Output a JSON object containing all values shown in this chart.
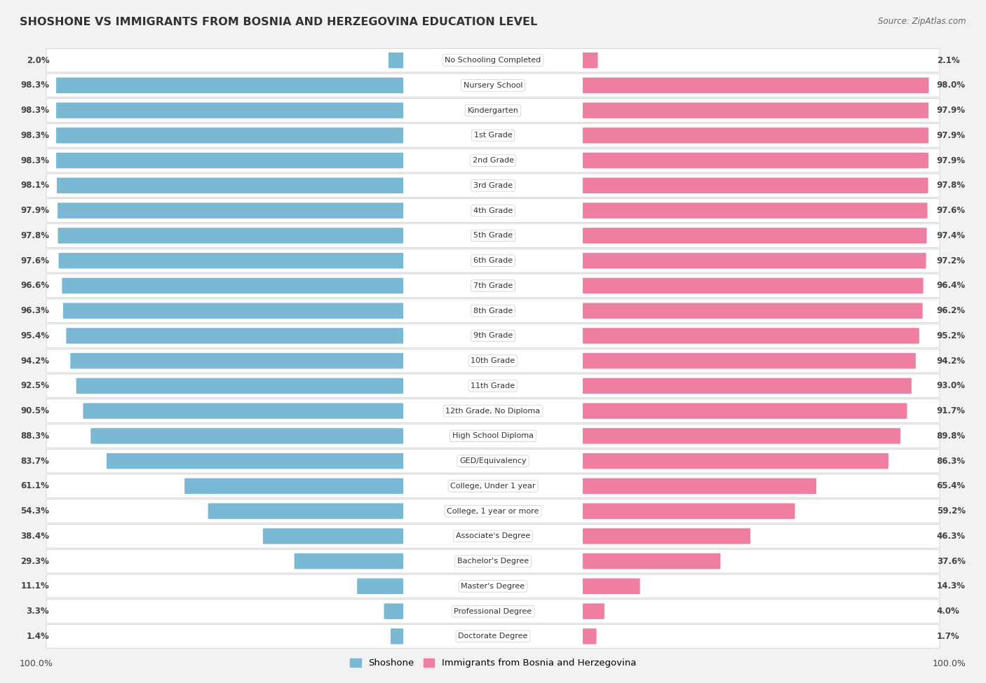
{
  "title": "SHOSHONE VS IMMIGRANTS FROM BOSNIA AND HERZEGOVINA EDUCATION LEVEL",
  "source": "Source: ZipAtlas.com",
  "categories": [
    "No Schooling Completed",
    "Nursery School",
    "Kindergarten",
    "1st Grade",
    "2nd Grade",
    "3rd Grade",
    "4th Grade",
    "5th Grade",
    "6th Grade",
    "7th Grade",
    "8th Grade",
    "9th Grade",
    "10th Grade",
    "11th Grade",
    "12th Grade, No Diploma",
    "High School Diploma",
    "GED/Equivalency",
    "College, Under 1 year",
    "College, 1 year or more",
    "Associate's Degree",
    "Bachelor's Degree",
    "Master's Degree",
    "Professional Degree",
    "Doctorate Degree"
  ],
  "shoshone": [
    2.0,
    98.3,
    98.3,
    98.3,
    98.3,
    98.1,
    97.9,
    97.8,
    97.6,
    96.6,
    96.3,
    95.4,
    94.2,
    92.5,
    90.5,
    88.3,
    83.7,
    61.1,
    54.3,
    38.4,
    29.3,
    11.1,
    3.3,
    1.4
  ],
  "immigrants": [
    2.1,
    98.0,
    97.9,
    97.9,
    97.9,
    97.8,
    97.6,
    97.4,
    97.2,
    96.4,
    96.2,
    95.2,
    94.2,
    93.0,
    91.7,
    89.8,
    86.3,
    65.4,
    59.2,
    46.3,
    37.6,
    14.3,
    4.0,
    1.7
  ],
  "blue_color": "#7bb8d4",
  "pink_color": "#ee7fa0",
  "bg_color": "#f2f2f2",
  "pill_bg_color": "#e0e0e0",
  "row_bg_color": "#ffffff",
  "legend_shoshone": "Shoshone",
  "legend_immigrants": "Immigrants from Bosnia and Herzegovina",
  "left_footer": "100.0%",
  "right_footer": "100.0%"
}
